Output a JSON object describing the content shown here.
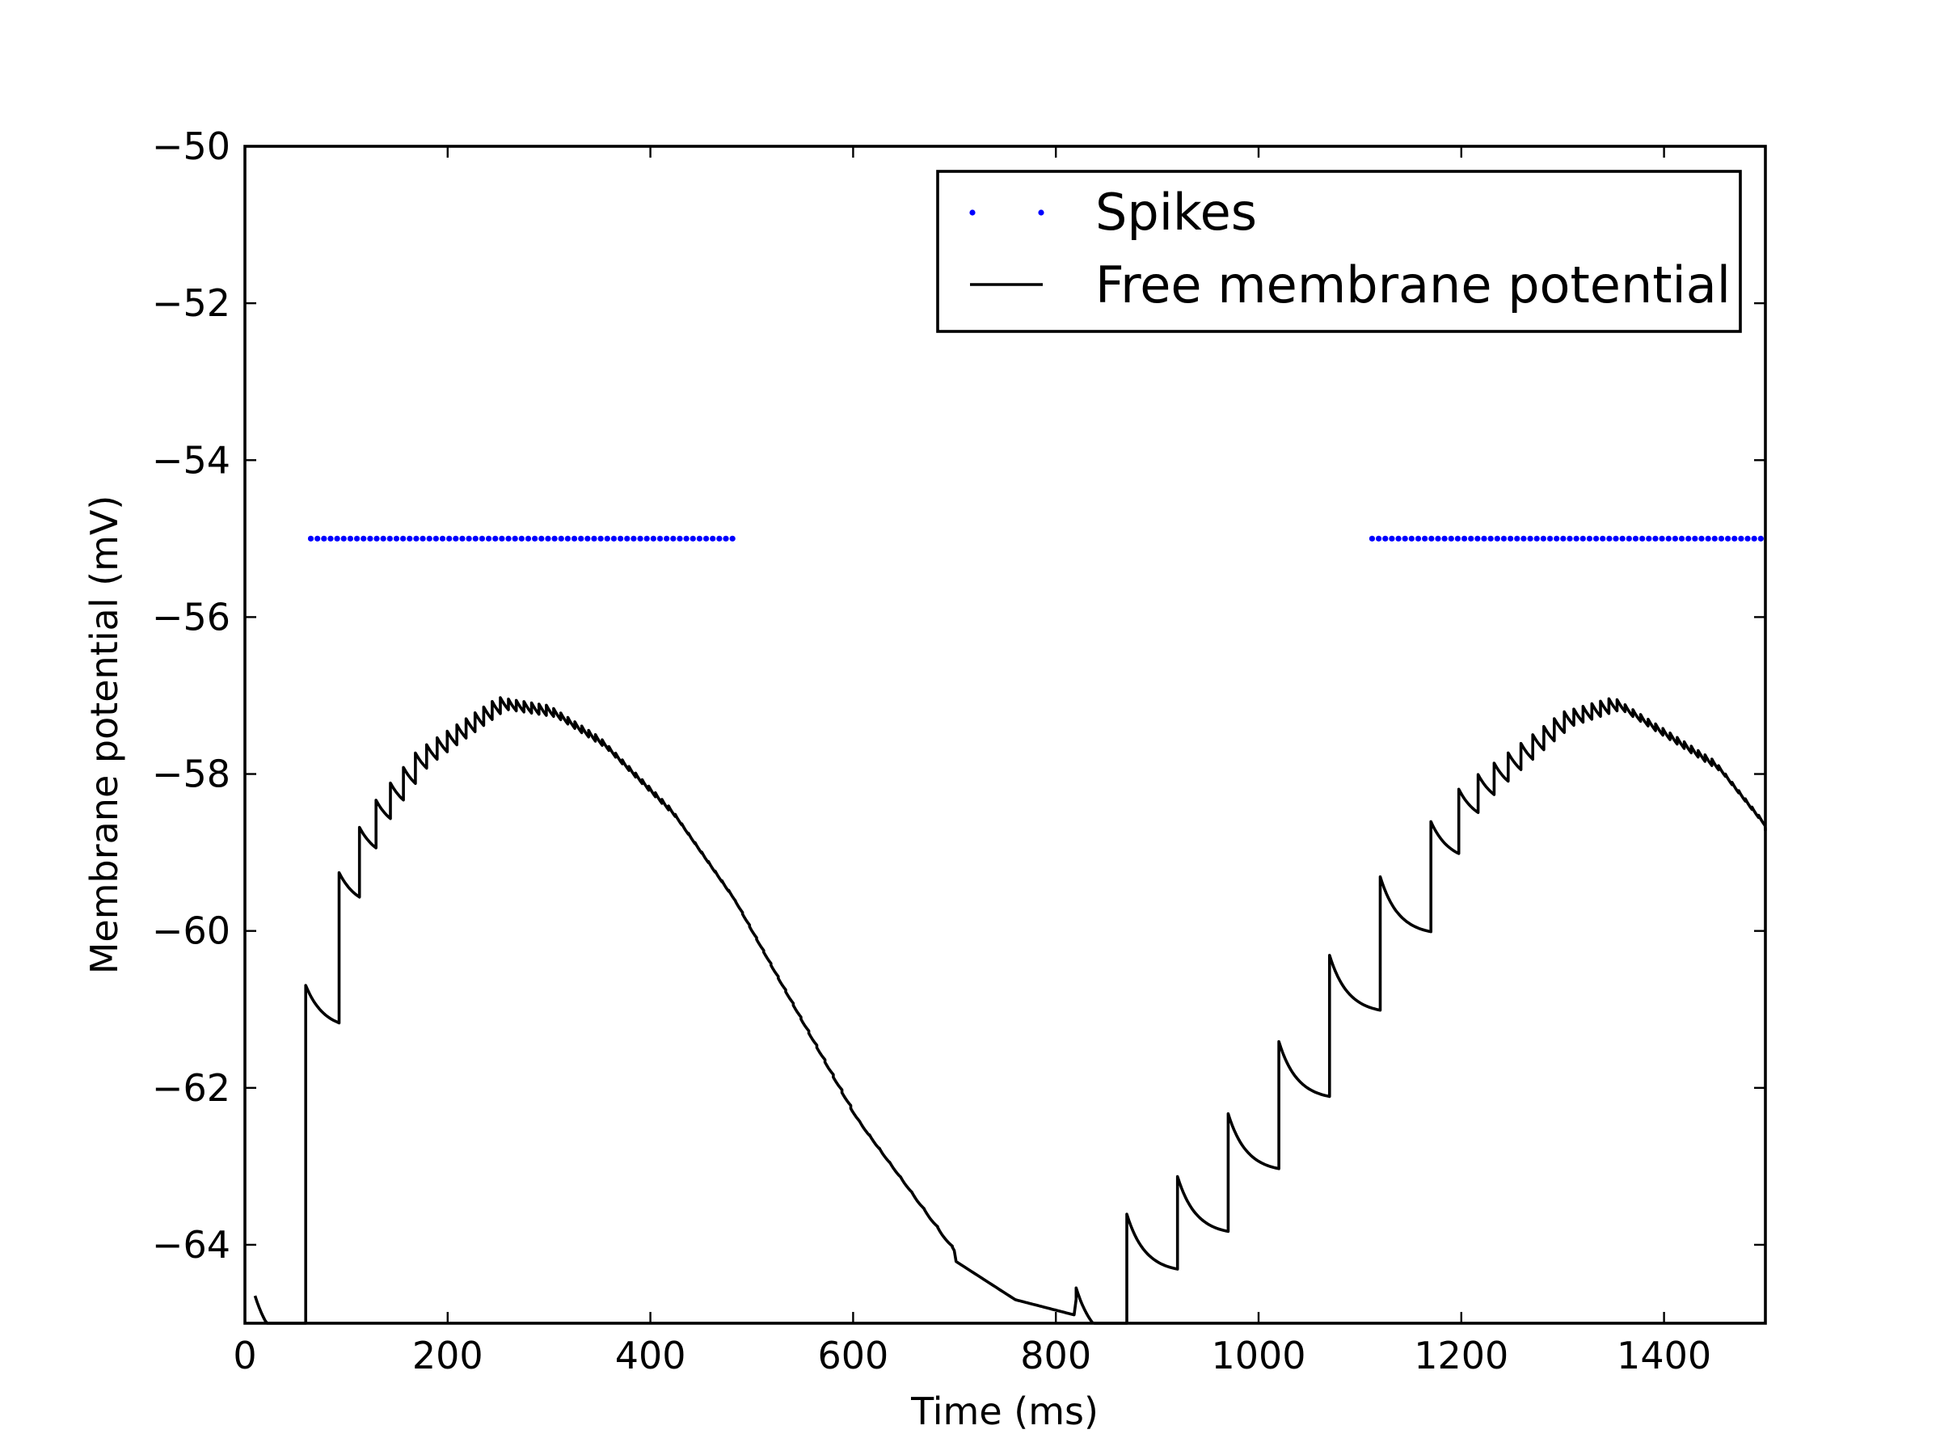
{
  "chart_data": {
    "type": "line",
    "title": "",
    "xlabel": "Time (ms)",
    "ylabel": "Membrane potential (mV)",
    "xlim": [
      0,
      1500
    ],
    "ylim": [
      -65,
      -50
    ],
    "xticks": [
      0,
      200,
      400,
      600,
      800,
      1000,
      1200,
      1400
    ],
    "yticks": [
      -50,
      -52,
      -54,
      -56,
      -58,
      -60,
      -62,
      -64
    ],
    "xtick_labels": [
      "0",
      "200",
      "400",
      "600",
      "800",
      "1000",
      "1200",
      "1400"
    ],
    "ytick_labels": [
      "−50",
      "−52",
      "−54",
      "−56",
      "−58",
      "−60",
      "−62",
      "−64"
    ],
    "grid": false,
    "legend": {
      "position": "upper-right",
      "entries": [
        {
          "label": "Spikes",
          "marker": "dot",
          "color": "#0000ff"
        },
        {
          "label": "Free membrane potential",
          "marker": "line",
          "color": "#000000"
        }
      ]
    },
    "series": [
      {
        "name": "Free membrane potential",
        "kind": "line",
        "color": "#000000",
        "description": "Sinusoidally modulated input; envelope peaks near -57 mV at ~250 and ~1350 ms, minimum near -65 mV at ~820 ms",
        "envelope_points": [
          {
            "x": 10,
            "y": -65.0
          },
          {
            "x": 15,
            "y": -64.3
          },
          {
            "x": 30,
            "y": -63.0
          },
          {
            "x": 50,
            "y": -61.5
          },
          {
            "x": 80,
            "y": -59.8
          },
          {
            "x": 120,
            "y": -58.6
          },
          {
            "x": 170,
            "y": -57.8
          },
          {
            "x": 250,
            "y": -57.1
          },
          {
            "x": 300,
            "y": -57.2
          },
          {
            "x": 350,
            "y": -57.6
          },
          {
            "x": 420,
            "y": -58.5
          },
          {
            "x": 480,
            "y": -59.6
          },
          {
            "x": 540,
            "y": -61.0
          },
          {
            "x": 600,
            "y": -62.4
          },
          {
            "x": 645,
            "y": -63.2
          },
          {
            "x": 700,
            "y": -64.2
          },
          {
            "x": 760,
            "y": -64.7
          },
          {
            "x": 820,
            "y": -64.9
          },
          {
            "x": 825,
            "y": -64.2
          },
          {
            "x": 900,
            "y": -63.8
          },
          {
            "x": 1000,
            "y": -62.2
          },
          {
            "x": 1100,
            "y": -60.0
          },
          {
            "x": 1200,
            "y": -58.3
          },
          {
            "x": 1300,
            "y": -57.3
          },
          {
            "x": 1350,
            "y": -57.1
          },
          {
            "x": 1450,
            "y": -57.9
          },
          {
            "x": 1500,
            "y": -58.7
          }
        ]
      },
      {
        "name": "Spikes",
        "kind": "scatter",
        "color": "#0000ff",
        "y": -55,
        "segments": [
          {
            "x_start": 65,
            "x_end": 487
          },
          {
            "x_start": 1112,
            "x_end": 1500
          }
        ]
      }
    ]
  }
}
